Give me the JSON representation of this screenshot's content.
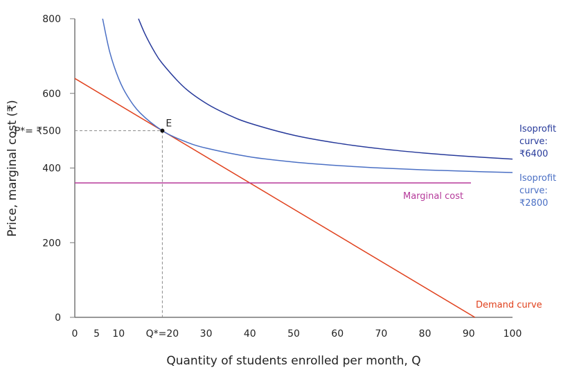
{
  "chart_data": {
    "type": "line",
    "xlabel": "Quantity of students enrolled per month, Q",
    "ylabel": "Price, marginal cost (₹)",
    "xlim": [
      0,
      100
    ],
    "ylim": [
      0,
      800
    ],
    "x_ticks": [
      {
        "value": 0,
        "label": "0"
      },
      {
        "value": 5,
        "label": "5"
      },
      {
        "value": 10,
        "label": "10"
      },
      {
        "value": 20,
        "label": "Q*=20"
      },
      {
        "value": 30,
        "label": "30"
      },
      {
        "value": 40,
        "label": "40"
      },
      {
        "value": 50,
        "label": "50"
      },
      {
        "value": 60,
        "label": "60"
      },
      {
        "value": 70,
        "label": "70"
      },
      {
        "value": 80,
        "label": "80"
      },
      {
        "value": 90,
        "label": "90"
      },
      {
        "value": 100,
        "label": "100"
      }
    ],
    "y_ticks": [
      {
        "value": 0,
        "label": "0"
      },
      {
        "value": 200,
        "label": "200"
      },
      {
        "value": 400,
        "label": "400"
      },
      {
        "value": 500,
        "label": "P*= ₹500"
      },
      {
        "value": 600,
        "label": "600"
      },
      {
        "value": 800,
        "label": "800"
      }
    ],
    "grid": false,
    "series": [
      {
        "name": "Demand curve",
        "color": "#e0401c",
        "x": [
          0,
          91.4
        ],
        "y": [
          640,
          0
        ]
      },
      {
        "name": "Marginal cost",
        "color": "#b5399a",
        "x": [
          0,
          90.5
        ],
        "y": [
          360,
          360
        ]
      },
      {
        "name": "Isoprofit curve: ₹2800",
        "label_lines": [
          "Isoprofit",
          "curve:",
          "₹2800"
        ],
        "color": "#4a6fc4",
        "x": [
          6.36,
          8,
          10,
          12,
          15,
          20,
          25,
          30,
          40,
          50,
          60,
          70,
          80,
          90,
          100
        ],
        "y": [
          800,
          710,
          640,
          593.3,
          546.7,
          500,
          472,
          453.3,
          430,
          416,
          406.7,
          400,
          395,
          391.1,
          388
        ]
      },
      {
        "name": "Isoprofit curve: ₹6400",
        "label_lines": [
          "Isoprofit",
          "curve:",
          "₹6400"
        ],
        "color": "#26399a",
        "x": [
          14.55,
          16,
          18,
          20,
          25,
          30,
          35,
          40,
          50,
          60,
          70,
          80,
          90,
          100
        ],
        "y": [
          800,
          760,
          715.6,
          680,
          616,
          573.3,
          542.9,
          520,
          488,
          466.7,
          451.4,
          440,
          431.1,
          424
        ]
      }
    ],
    "annotations": [
      {
        "label": "E",
        "x": 20,
        "y": 500
      }
    ]
  }
}
